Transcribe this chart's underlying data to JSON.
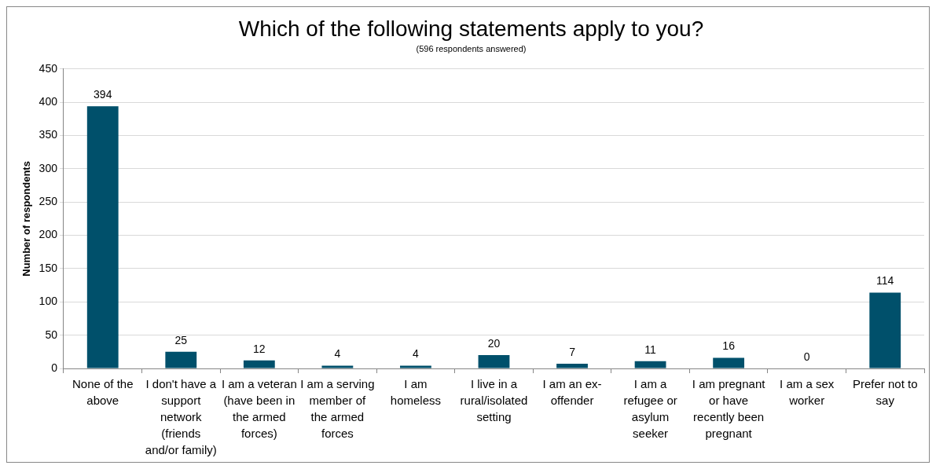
{
  "chart_data": {
    "type": "bar",
    "title": "Which of the following statements apply to you?",
    "subtitle": "(596 respondents answered)",
    "ylabel": "Number of respondents",
    "categories": [
      "None of the above",
      "I don't have a support network (friends and/or family)",
      "I am a veteran (have been in the armed forces)",
      "I am a serving member of the armed forces",
      "I am homeless",
      "I live in a rural/isolated setting",
      "I am an ex-offender",
      "I am a refugee or asylum seeker",
      "I am pregnant or have recently been pregnant",
      "I am a sex worker",
      "Prefer not to say"
    ],
    "values": [
      394,
      25,
      12,
      4,
      4,
      20,
      7,
      11,
      16,
      0,
      114
    ],
    "color": "#00506b",
    "ylim": [
      0,
      450
    ],
    "yticks": [
      0,
      50,
      100,
      150,
      200,
      250,
      300,
      350,
      400,
      450
    ],
    "grid": "y",
    "legend": false,
    "data_labels": true
  }
}
